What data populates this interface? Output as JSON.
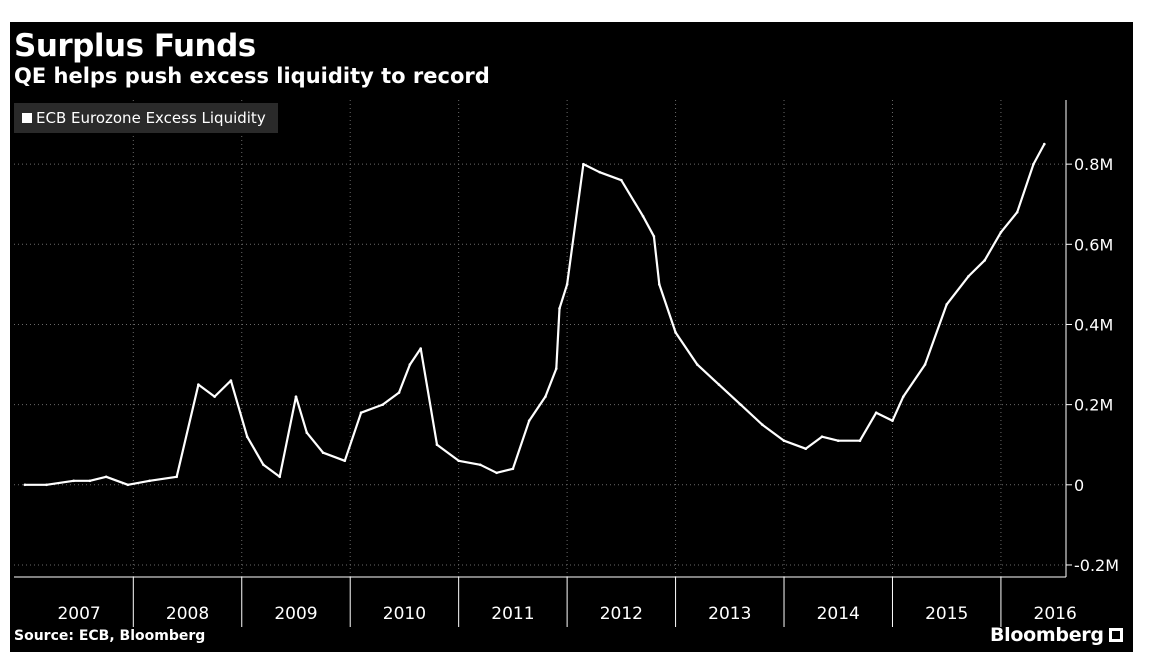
{
  "header": {
    "title": "Surplus Funds",
    "subtitle": "QE helps push excess liquidity to record"
  },
  "footer": {
    "source": "Source: ECB, Bloomberg",
    "brand": "Bloomberg"
  },
  "colors": {
    "background": "#000000",
    "line": "#ffffff",
    "grid": "#6a6a6a",
    "legend_bg": "#2a2a2a"
  },
  "chart_data": {
    "type": "line",
    "title": "Surplus Funds",
    "subtitle": "QE helps push excess liquidity to record",
    "xlabel": "",
    "ylabel": "",
    "x_tick_labels": [
      "2007",
      "2008",
      "2009",
      "2010",
      "2011",
      "2012",
      "2013",
      "2014",
      "2015",
      "2016"
    ],
    "y_ticks": [
      -0.2,
      0,
      0.2,
      0.4,
      0.6,
      0.8
    ],
    "y_tick_labels": [
      "-0.2M",
      "0",
      "0.2M",
      "0.4M",
      "0.6M",
      "0.8M"
    ],
    "ylim": [
      -0.23,
      0.96
    ],
    "xlim": [
      2006.9,
      2016.6
    ],
    "legend": {
      "position": "top-left",
      "entries": [
        "ECB Eurozone Excess Liquidity"
      ]
    },
    "series": [
      {
        "name": "ECB Eurozone Excess Liquidity",
        "x": [
          2007.0,
          2007.2,
          2007.45,
          2007.6,
          2007.75,
          2007.95,
          2008.15,
          2008.4,
          2008.6,
          2008.75,
          2008.9,
          2009.05,
          2009.2,
          2009.35,
          2009.5,
          2009.6,
          2009.75,
          2009.95,
          2010.1,
          2010.3,
          2010.45,
          2010.55,
          2010.65,
          2010.8,
          2011.0,
          2011.2,
          2011.35,
          2011.5,
          2011.65,
          2011.8,
          2011.9,
          2011.93,
          2012.0,
          2012.15,
          2012.3,
          2012.5,
          2012.7,
          2012.8,
          2012.85,
          2013.0,
          2013.2,
          2013.4,
          2013.6,
          2013.8,
          2014.0,
          2014.2,
          2014.35,
          2014.5,
          2014.7,
          2014.85,
          2015.0,
          2015.1,
          2015.3,
          2015.5,
          2015.7,
          2015.85,
          2016.0,
          2016.15,
          2016.3,
          2016.4
        ],
        "y": [
          0.0,
          0.0,
          0.01,
          0.01,
          0.02,
          0.0,
          0.01,
          0.02,
          0.25,
          0.22,
          0.26,
          0.12,
          0.05,
          0.02,
          0.22,
          0.13,
          0.08,
          0.06,
          0.18,
          0.2,
          0.23,
          0.3,
          0.34,
          0.1,
          0.06,
          0.05,
          0.03,
          0.04,
          0.16,
          0.22,
          0.29,
          0.44,
          0.5,
          0.8,
          0.78,
          0.76,
          0.67,
          0.62,
          0.5,
          0.38,
          0.3,
          0.25,
          0.2,
          0.15,
          0.11,
          0.09,
          0.12,
          0.11,
          0.11,
          0.18,
          0.16,
          0.22,
          0.3,
          0.45,
          0.52,
          0.56,
          0.63,
          0.68,
          0.8,
          0.85
        ]
      }
    ]
  }
}
